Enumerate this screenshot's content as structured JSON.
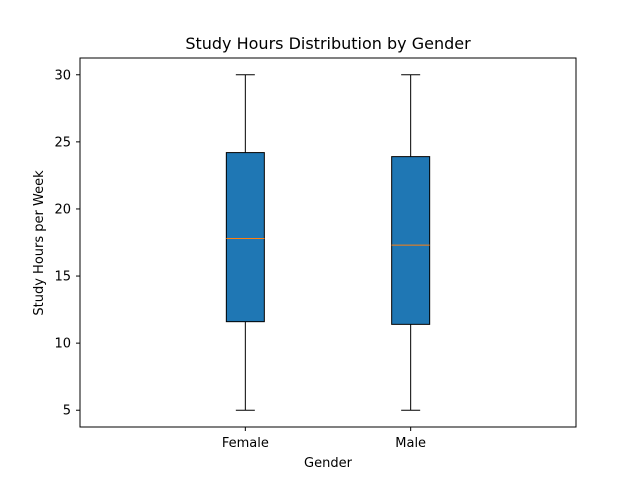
{
  "chart_data": {
    "type": "box",
    "title": "Study Hours Distribution by Gender",
    "xlabel": "Gender",
    "ylabel": "Study Hours per Week",
    "categories": [
      "Female",
      "Male"
    ],
    "boxes": [
      {
        "name": "Female",
        "min": 5,
        "q1": 11.6,
        "median": 17.8,
        "q3": 24.2,
        "max": 30
      },
      {
        "name": "Male",
        "min": 5,
        "q1": 11.4,
        "median": 17.3,
        "q3": 23.9,
        "max": 30
      }
    ],
    "ylim": [
      3.75,
      31.25
    ],
    "yticks": [
      5,
      10,
      15,
      20,
      25,
      30
    ],
    "grid": false,
    "colors": {
      "box_fill": "#1f77b4",
      "median": "#ff7f0e",
      "line": "#000000"
    }
  }
}
